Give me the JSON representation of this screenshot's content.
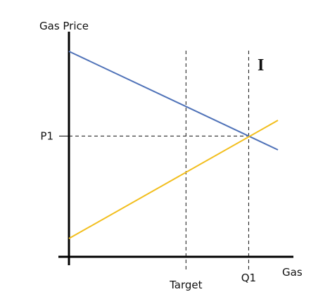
{
  "chart_data": {
    "type": "line",
    "ylabel": "Gas Price",
    "xlabel": "Gas",
    "xlim": [
      0,
      100
    ],
    "ylim": [
      0,
      100
    ],
    "grid": false,
    "legend": "none",
    "region_label": "I",
    "series": [
      {
        "color": "#4F72B8",
        "x": [
          0,
          100
        ],
        "y": [
          100,
          50
        ]
      },
      {
        "color": "#F2BE1C",
        "x": [
          0,
          100
        ],
        "y": [
          5,
          65
        ]
      }
    ],
    "reference_lines": [
      {
        "axis": "x",
        "value": 56,
        "label": "Target"
      },
      {
        "axis": "x",
        "value": 86,
        "label": "Q1"
      },
      {
        "axis": "y",
        "value": 57,
        "label": "P1"
      }
    ],
    "colors": {
      "axis": "#000000",
      "reference": "#111111"
    }
  }
}
